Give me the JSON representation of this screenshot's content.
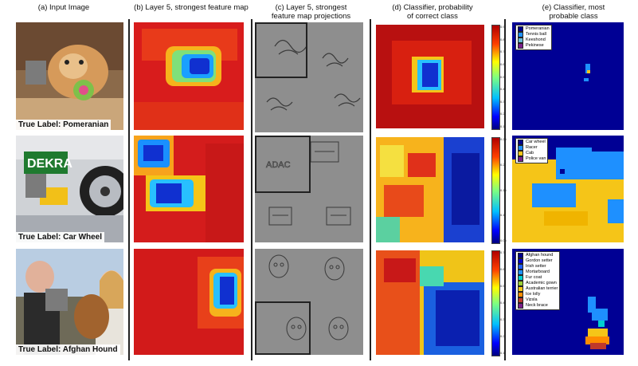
{
  "headers": {
    "a": "(a) Input Image",
    "b": "(b) Layer 5, strongest feature map",
    "c1": "(c) Layer 5, strongest",
    "c2": "feature map projections",
    "d1": "(d) Classifier, probability",
    "d2": "of correct class",
    "e1": "(e) Classifier, most",
    "e2": "probable class"
  },
  "rows": [
    {
      "true_label": "True Label: Pomeranian",
      "colorbar_ticks": [
        "0.9",
        "0.8",
        "0.7",
        "0.6",
        "0.5",
        "0.4",
        "0.3",
        "0.2",
        "0.1"
      ],
      "legend": [
        {
          "label": "Pomeranian",
          "color": "#00008b"
        },
        {
          "label": "Tennis ball",
          "color": "#1e90ff"
        },
        {
          "label": "Keeshond",
          "color": "#6bbcd6"
        },
        {
          "label": "Pekinese",
          "color": "#7a1f8a"
        }
      ]
    },
    {
      "true_label": "True Label: Car Wheel",
      "colorbar_ticks": [
        "0.25",
        "0.2",
        "0.15",
        "0.1",
        "0.05"
      ],
      "legend": [
        {
          "label": "Car wheel",
          "color": "#00008b"
        },
        {
          "label": "Racer",
          "color": "#1e90ff"
        },
        {
          "label": "Cab",
          "color": "#f5c518"
        },
        {
          "label": "Police van",
          "color": "#7a1f8a"
        }
      ]
    },
    {
      "true_label": "True Label: Afghan Hound",
      "colorbar_ticks": [
        "0.7",
        "0.6",
        "0.5",
        "0.4",
        "0.3",
        "0.2",
        "0.1"
      ],
      "legend": [
        {
          "label": "Afghan hound",
          "color": "#00008b"
        },
        {
          "label": "Gordon setter",
          "color": "#0000cd"
        },
        {
          "label": "Irish setter",
          "color": "#1e5fff"
        },
        {
          "label": "Mortarboard",
          "color": "#1e90ff"
        },
        {
          "label": "Fur coat",
          "color": "#00ced1"
        },
        {
          "label": "Academic gown",
          "color": "#9acd32"
        },
        {
          "label": "Australian terrier",
          "color": "#f5c518"
        },
        {
          "label": "Ice lolly",
          "color": "#ff8c00"
        },
        {
          "label": "Vizsla",
          "color": "#c0392b"
        },
        {
          "label": "Neck brace",
          "color": "#7a1f8a"
        }
      ]
    }
  ]
}
